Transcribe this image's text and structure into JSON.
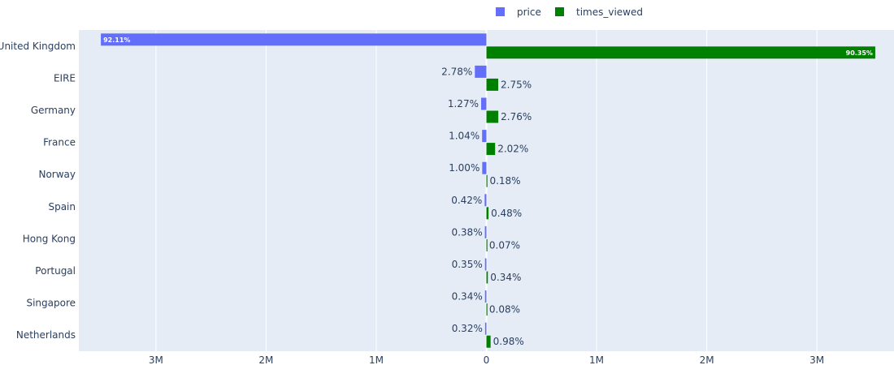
{
  "chart_data": {
    "type": "bar",
    "orientation": "horizontal",
    "categories": [
      "United Kingdom",
      "EIRE",
      "Germany",
      "France",
      "Norway",
      "Spain",
      "Hong Kong",
      "Portugal",
      "Singapore",
      "Netherlands"
    ],
    "series": [
      {
        "name": "price",
        "color": "#636efa",
        "values": [
          -3500000,
          -105000,
          -48000,
          -39000,
          -38000,
          -16000,
          -14000,
          -13000,
          -13000,
          -12000
        ],
        "labels": [
          "92.11%",
          "2.78%",
          "1.27%",
          "1.04%",
          "1.00%",
          "0.42%",
          "0.38%",
          "0.35%",
          "0.34%",
          "0.32%"
        ]
      },
      {
        "name": "times_viewed",
        "color": "#008000",
        "values": [
          3530000,
          107000,
          108000,
          79000,
          7000,
          19000,
          3000,
          13000,
          3000,
          38000
        ],
        "labels": [
          "90.35%",
          "2.75%",
          "2.76%",
          "2.02%",
          "0.18%",
          "0.48%",
          "0.07%",
          "0.34%",
          "0.08%",
          "0.98%"
        ]
      }
    ],
    "xlim": [
      -3700000,
      3700000
    ],
    "x_ticks": [
      {
        "value": -3000000,
        "label": "3M"
      },
      {
        "value": -2000000,
        "label": "2M"
      },
      {
        "value": -1000000,
        "label": "1M"
      },
      {
        "value": 0,
        "label": "0"
      },
      {
        "value": 1000000,
        "label": "1M"
      },
      {
        "value": 2000000,
        "label": "2M"
      },
      {
        "value": 3000000,
        "label": "3M"
      }
    ],
    "grid": true,
    "legend_position": "top-center",
    "plot_bg": "#e5ecf6"
  }
}
